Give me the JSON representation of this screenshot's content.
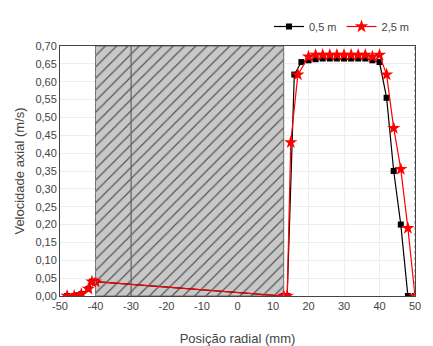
{
  "chart_data": {
    "type": "line",
    "xlabel": "Posição radial (mm)",
    "ylabel": "Velocidade axial (m/s)",
    "xlim": [
      -50,
      50
    ],
    "ylim": [
      0.0,
      0.7
    ],
    "xticks": [
      -50,
      -40,
      -30,
      -20,
      -10,
      0,
      10,
      20,
      30,
      40,
      50
    ],
    "yticks": [
      {
        "value": 0.0,
        "label": "0,00"
      },
      {
        "value": 0.05,
        "label": "0,05"
      },
      {
        "value": 0.1,
        "label": "0,10"
      },
      {
        "value": 0.15,
        "label": "0,15"
      },
      {
        "value": 0.2,
        "label": "0,20"
      },
      {
        "value": 0.25,
        "label": "0,25"
      },
      {
        "value": 0.3,
        "label": "0,30"
      },
      {
        "value": 0.35,
        "label": "0,35"
      },
      {
        "value": 0.4,
        "label": "0,40"
      },
      {
        "value": 0.45,
        "label": "0,45"
      },
      {
        "value": 0.5,
        "label": "0,50"
      },
      {
        "value": 0.55,
        "label": "0,55"
      },
      {
        "value": 0.6,
        "label": "0,60"
      },
      {
        "value": 0.65,
        "label": "0,65"
      },
      {
        "value": 0.7,
        "label": "0,70"
      }
    ],
    "grid": true,
    "legend": "upper right",
    "shaded_regions": [
      {
        "x0": -30,
        "x1": 13
      },
      {
        "x0": -40,
        "x1": -30
      }
    ],
    "vlines": [
      -40,
      -30,
      13,
      50
    ],
    "series": [
      {
        "name": "0,5 m",
        "color": "black",
        "marker": "square",
        "line_style": "solid",
        "x": [
          -48,
          -46,
          -44,
          -42,
          -41,
          -40,
          13,
          14,
          16,
          18,
          20,
          22,
          24,
          26,
          28,
          30,
          32,
          34,
          36,
          38,
          40,
          42,
          44,
          46,
          48,
          50
        ],
        "values": [
          0.0,
          0.0,
          0.005,
          0.02,
          0.04,
          0.04,
          0.0,
          0.0,
          0.62,
          0.655,
          0.66,
          0.663,
          0.665,
          0.665,
          0.665,
          0.665,
          0.665,
          0.665,
          0.665,
          0.66,
          0.655,
          0.555,
          0.35,
          0.2,
          0.0,
          0.0
        ]
      },
      {
        "name": "2,5 m",
        "color": "red",
        "marker": "star",
        "line_style": "solid",
        "x": [
          -48,
          -46,
          -44,
          -42,
          -41,
          -40,
          13,
          14,
          15,
          17,
          20,
          22,
          24,
          26,
          28,
          30,
          32,
          34,
          36,
          38,
          40,
          42,
          44,
          46,
          48,
          50
        ],
        "values": [
          0.0,
          0.0,
          0.005,
          0.02,
          0.04,
          0.04,
          0.0,
          0.0,
          0.43,
          0.62,
          0.67,
          0.675,
          0.675,
          0.675,
          0.675,
          0.675,
          0.675,
          0.675,
          0.675,
          0.67,
          0.675,
          0.62,
          0.47,
          0.355,
          0.19,
          0.0
        ]
      }
    ]
  }
}
